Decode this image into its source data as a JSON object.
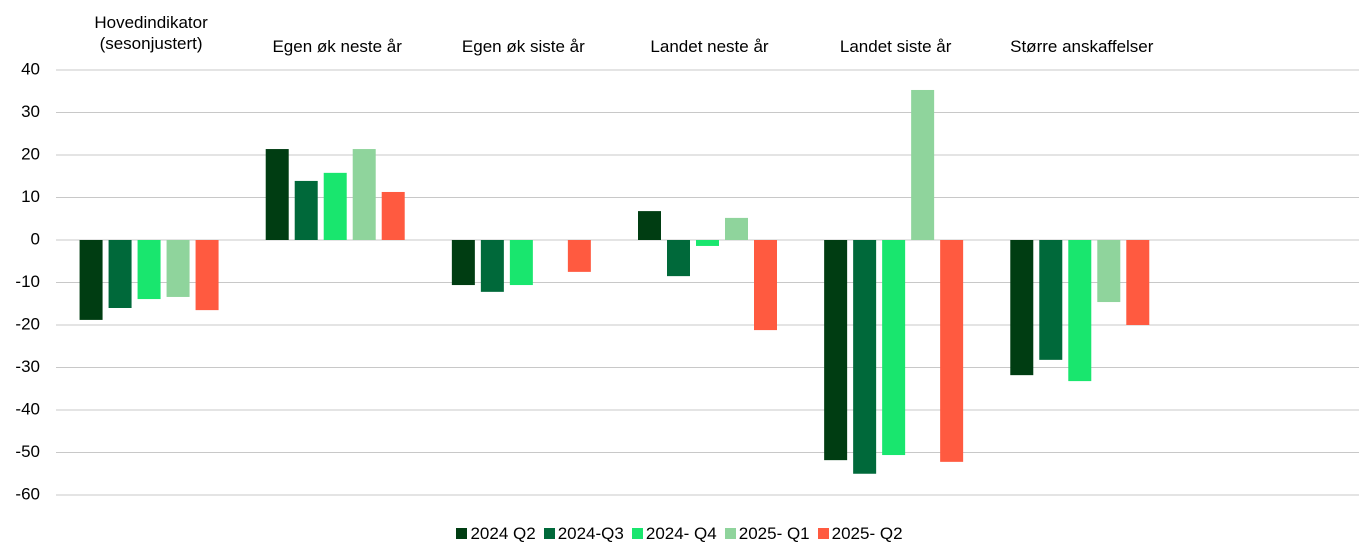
{
  "chart_data": {
    "type": "bar",
    "categories": [
      "Hovedindikator\n(sesonjustert)",
      "Egen øk neste år",
      "Egen øk siste år",
      "Landet neste år",
      "Landet siste år",
      "Større anskaffelser",
      null
    ],
    "series": [
      {
        "name": "2024 Q2",
        "color": "#003d12",
        "values": [
          -18.8,
          21.4,
          -10.6,
          6.8,
          -51.8,
          -31.8,
          null
        ]
      },
      {
        "name": "2024-Q3",
        "color": "#00693a",
        "values": [
          -16,
          13.9,
          -12.2,
          -8.5,
          -55,
          -28.2,
          null
        ]
      },
      {
        "name": "2024- Q4",
        "color": "#19e66e",
        "values": [
          -13.9,
          15.8,
          -10.6,
          -1.4,
          -50.6,
          -33.2,
          null
        ]
      },
      {
        "name": "2025- Q1",
        "color": "#8fd49c",
        "values": [
          -13.4,
          21.4,
          null,
          5.2,
          35.3,
          -14.6,
          null
        ]
      },
      {
        "name": "2025- Q2",
        "color": "#ff5a40",
        "values": [
          -16.5,
          11.3,
          -7.5,
          -21.2,
          -52.2,
          -20,
          null
        ]
      }
    ],
    "ylim": [
      -60,
      40
    ],
    "yticks": [
      -60,
      -50,
      -40,
      -30,
      -20,
      -10,
      0,
      10,
      20,
      30,
      40
    ],
    "grid": true
  }
}
